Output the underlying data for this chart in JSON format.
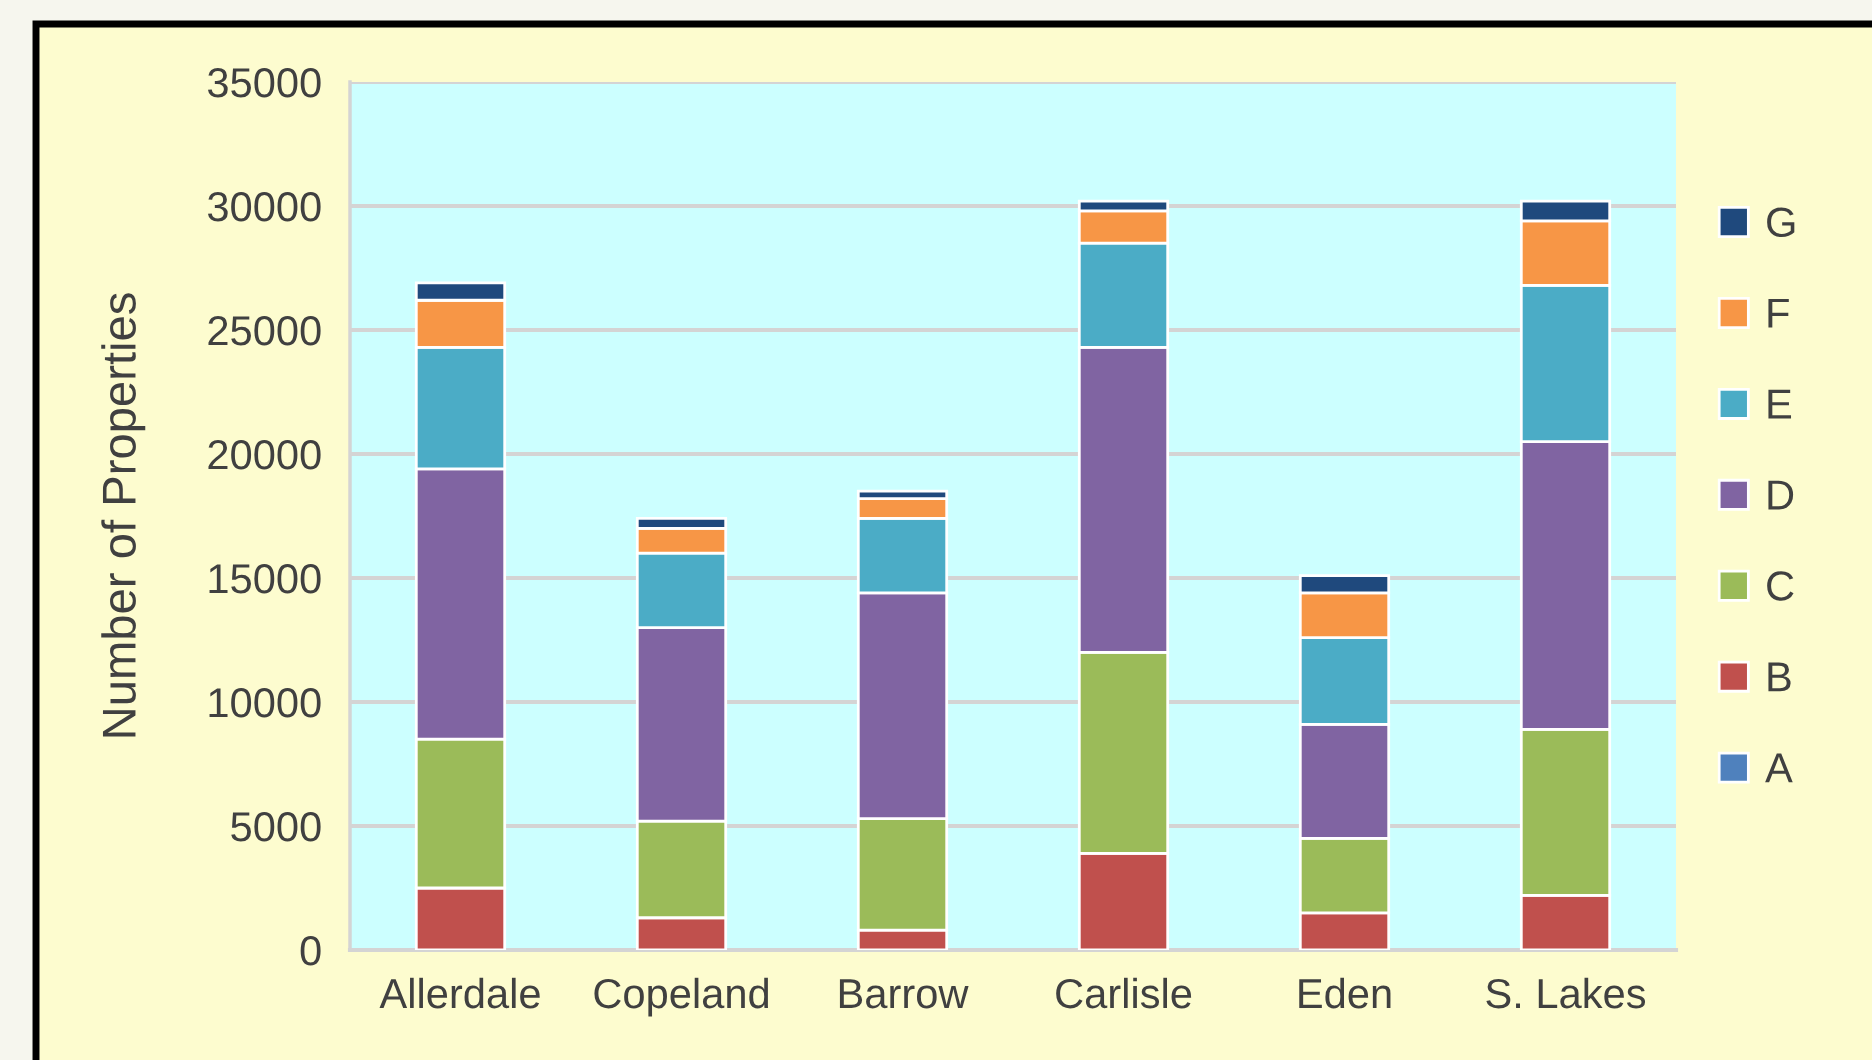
{
  "chart_data": {
    "type": "bar",
    "stacked": true,
    "ylabel": "Number of Properties",
    "categories": [
      "Allerdale",
      "Copeland",
      "Barrow",
      "Carlisle",
      "Eden",
      "S. Lakes"
    ],
    "series": [
      {
        "name": "A",
        "color": "#4f81bd",
        "values": [
          0,
          0,
          0,
          0,
          0,
          0
        ]
      },
      {
        "name": "B",
        "color": "#c0504d",
        "values": [
          2500,
          1300,
          800,
          3900,
          1500,
          2200
        ]
      },
      {
        "name": "C",
        "color": "#9bbb59",
        "values": [
          6000,
          3900,
          4500,
          8100,
          3000,
          6700
        ]
      },
      {
        "name": "D",
        "color": "#8064a2",
        "values": [
          10900,
          7800,
          9100,
          12300,
          4600,
          11600
        ]
      },
      {
        "name": "E",
        "color": "#4bacc6",
        "values": [
          4900,
          3000,
          3000,
          4200,
          3500,
          6300
        ]
      },
      {
        "name": "F",
        "color": "#f79646",
        "values": [
          1900,
          1000,
          800,
          1300,
          1800,
          2600
        ]
      },
      {
        "name": "G",
        "color": "#1f497d",
        "values": [
          700,
          400,
          300,
          400,
          700,
          800
        ]
      }
    ],
    "ylim": [
      0,
      35000
    ],
    "yticks": [
      0,
      5000,
      10000,
      15000,
      20000,
      25000,
      30000,
      35000
    ],
    "grid": "y",
    "legend": "right"
  }
}
